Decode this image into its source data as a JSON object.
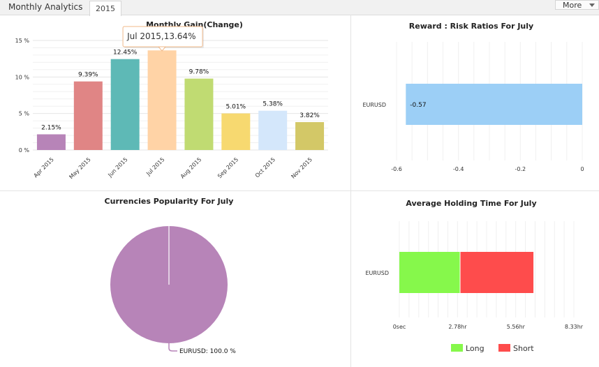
{
  "header": {
    "tab_label": "Monthly Analytics",
    "year_tab": "2015",
    "more_label": "More"
  },
  "chart_data": [
    {
      "type": "bar",
      "title": "Monthly Gain(Change)",
      "categories": [
        "Apr 2015",
        "May 2015",
        "Jun 2015",
        "Jul 2015",
        "Aug 2015",
        "Sep 2015",
        "Oct 2015",
        "Nov 2015"
      ],
      "values": [
        2.15,
        9.39,
        12.45,
        13.64,
        9.78,
        5.01,
        5.38,
        3.82
      ],
      "value_labels": [
        "2.15%",
        "9.39%",
        "12.45%",
        "13.64%",
        "9.78%",
        "5.01%",
        "5.38%",
        "3.82%"
      ],
      "colors": [
        "#b784b8",
        "#e08585",
        "#5eb9b6",
        "#ffd3a6",
        "#c0db72",
        "#f7d970",
        "#d4e7fb",
        "#d3c867"
      ],
      "ylim": [
        0,
        15
      ],
      "yticks": [
        0,
        5,
        10,
        15
      ],
      "ytick_labels": [
        "0 %",
        "5 %",
        "10 %",
        "15 %"
      ],
      "tooltip": {
        "category_index": 3,
        "text": "Jul 2015,13.64%"
      }
    },
    {
      "type": "bar",
      "orientation": "horizontal",
      "title": "Reward : Risk Ratios For July",
      "categories": [
        "EURUSD"
      ],
      "values": [
        -0.57
      ],
      "value_labels": [
        "-0.57"
      ],
      "color": "#9ccff6",
      "xlim": [
        -0.6,
        0
      ],
      "xticks": [
        -0.6,
        -0.4,
        -0.2,
        0
      ],
      "xtick_labels": [
        "-0.6",
        "-0.4",
        "-0.2",
        "0"
      ]
    },
    {
      "type": "pie",
      "title": "Currencies Popularity For July",
      "slices": [
        {
          "label": "EURUSD",
          "value": 100.0,
          "color": "#b784b8"
        }
      ],
      "data_label": "EURUSD: 100.0 %"
    },
    {
      "type": "bar",
      "orientation": "horizontal",
      "stacked": true,
      "title": "Average Holding Time For July",
      "categories": [
        "EURUSD"
      ],
      "series": [
        {
          "name": "Long",
          "values": [
            2.9
          ],
          "color": "#86f84b"
        },
        {
          "name": "Short",
          "values": [
            3.5
          ],
          "color": "#fe4c4c"
        }
      ],
      "xlim": [
        0,
        8.33
      ],
      "xticks": [
        0,
        2.78,
        5.56,
        8.33
      ],
      "xtick_labels": [
        "0sec",
        "2.78hr",
        "5.56hr",
        "8.33hr"
      ],
      "legend_position": "bottom"
    }
  ]
}
